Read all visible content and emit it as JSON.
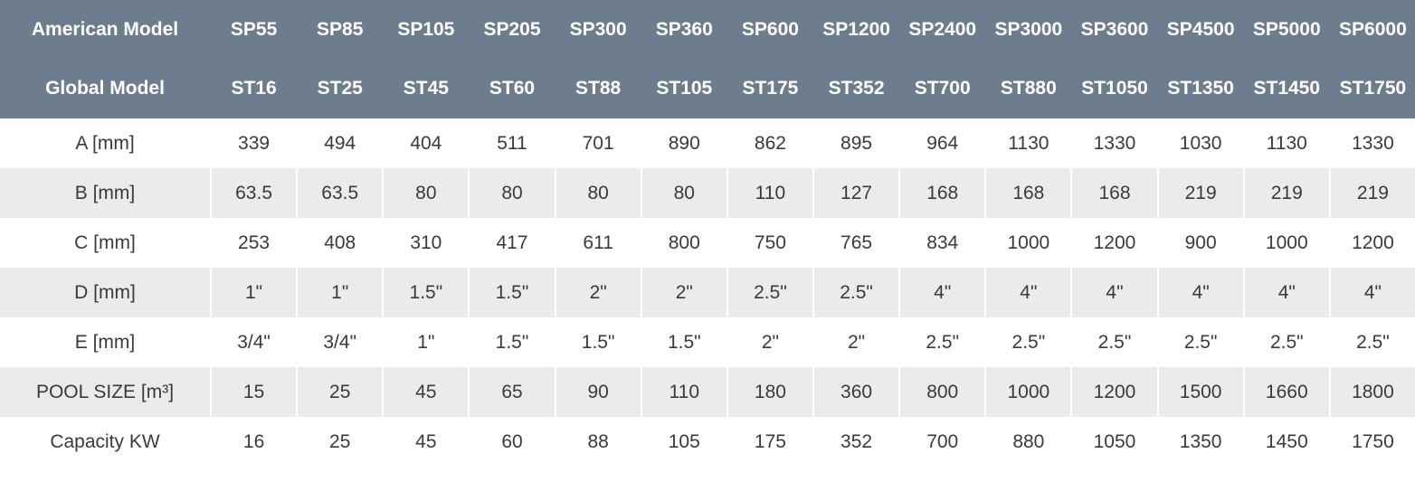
{
  "header_color": "#6e7d8e",
  "stripe_color": "#ebebeb",
  "header_rows": [
    {
      "label": "American Model",
      "values": [
        "SP55",
        "SP85",
        "SP105",
        "SP205",
        "SP300",
        "SP360",
        "SP600",
        "SP1200",
        "SP2400",
        "SP3000",
        "SP3600",
        "SP4500",
        "SP5000",
        "SP6000"
      ]
    },
    {
      "label": "Global Model",
      "values": [
        "ST16",
        "ST25",
        "ST45",
        "ST60",
        "ST88",
        "ST105",
        "ST175",
        "ST352",
        "ST700",
        "ST880",
        "ST1050",
        "ST1350",
        "ST1450",
        "ST1750"
      ]
    }
  ],
  "rows": [
    {
      "label": "A [mm]",
      "values": [
        "339",
        "494",
        "404",
        "511",
        "701",
        "890",
        "862",
        "895",
        "964",
        "1130",
        "1330",
        "1030",
        "1130",
        "1330"
      ]
    },
    {
      "label": "B [mm]",
      "values": [
        "63.5",
        "63.5",
        "80",
        "80",
        "80",
        "80",
        "110",
        "127",
        "168",
        "168",
        "168",
        "219",
        "219",
        "219"
      ]
    },
    {
      "label": "C [mm]",
      "values": [
        "253",
        "408",
        "310",
        "417",
        "611",
        "800",
        "750",
        "765",
        "834",
        "1000",
        "1200",
        "900",
        "1000",
        "1200"
      ]
    },
    {
      "label": "D [mm]",
      "values": [
        "1\"",
        "1\"",
        "1.5\"",
        "1.5\"",
        "2\"",
        "2\"",
        "2.5\"",
        "2.5\"",
        "4\"",
        "4\"",
        "4\"",
        "4\"",
        "4\"",
        "4\""
      ]
    },
    {
      "label": "E [mm]",
      "values": [
        "3/4\"",
        "3/4\"",
        "1\"",
        "1.5\"",
        "1.5\"",
        "1.5\"",
        "2\"",
        "2\"",
        "2.5\"",
        "2.5\"",
        "2.5\"",
        "2.5\"",
        "2.5\"",
        "2.5\""
      ]
    },
    {
      "label": "POOL SIZE [m³]",
      "values": [
        "15",
        "25",
        "45",
        "65",
        "90",
        "110",
        "180",
        "360",
        "800",
        "1000",
        "1200",
        "1500",
        "1660",
        "1800"
      ]
    },
    {
      "label": "Capacity KW",
      "values": [
        "16",
        "25",
        "45",
        "60",
        "88",
        "105",
        "175",
        "352",
        "700",
        "880",
        "1050",
        "1350",
        "1450",
        "1750"
      ]
    }
  ]
}
